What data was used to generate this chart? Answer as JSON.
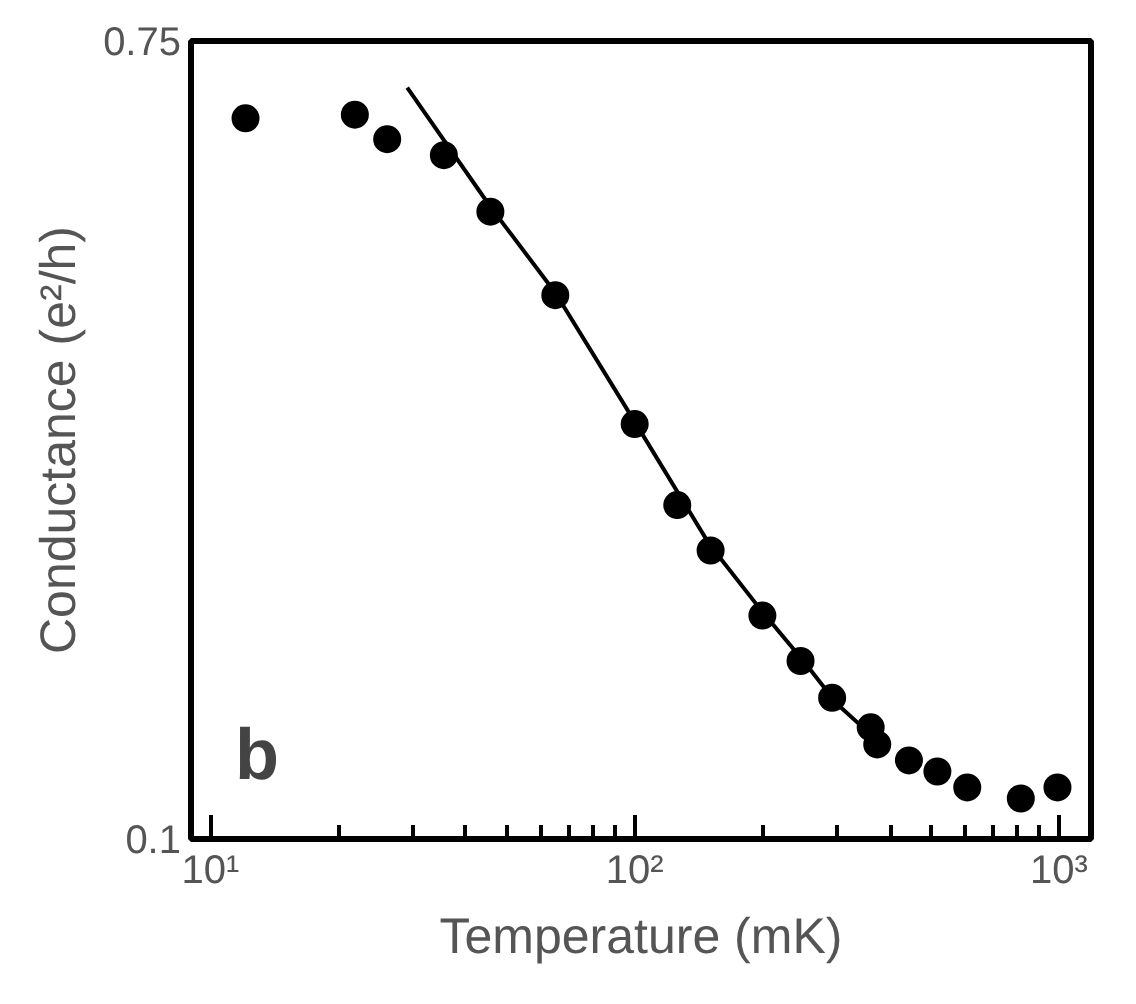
{
  "chart_data": {
    "type": "scatter",
    "xlabel": "Temperature (mK)",
    "ylabel": "Conductance (e²/h)",
    "log": "x",
    "xlim": [
      9,
      1190
    ],
    "ylim": [
      0.1,
      0.75
    ],
    "xticks": [
      {
        "value": 10,
        "label": "10¹"
      },
      {
        "value": 100,
        "label": "10²"
      },
      {
        "value": 1000,
        "label": "10³"
      }
    ],
    "yticks": [
      0.1,
      0.75
    ],
    "grid": false,
    "annotations": [
      "b"
    ],
    "series": [
      {
        "marker": "circle",
        "color": "#000000",
        "x": [
          12.1,
          21.9,
          26.1,
          35.5,
          45.7,
          65,
          100,
          126,
          151,
          200,
          246,
          292,
          360,
          373,
          443,
          517,
          608,
          813,
          992
        ],
        "values": [
          0.687,
          0.69,
          0.67,
          0.657,
          0.611,
          0.543,
          0.438,
          0.372,
          0.335,
          0.282,
          0.245,
          0.215,
          0.191,
          0.177,
          0.164,
          0.155,
          0.142,
          0.133,
          0.142
        ]
      },
      {
        "type": "line",
        "color": "#000000",
        "x": [
          29.1,
          45.7,
          65,
          100,
          150,
          200,
          250,
          300,
          360,
          380
        ],
        "values": [
          0.712,
          0.615,
          0.545,
          0.44,
          0.34,
          0.285,
          0.245,
          0.21,
          0.185,
          0.175
        ]
      }
    ]
  }
}
